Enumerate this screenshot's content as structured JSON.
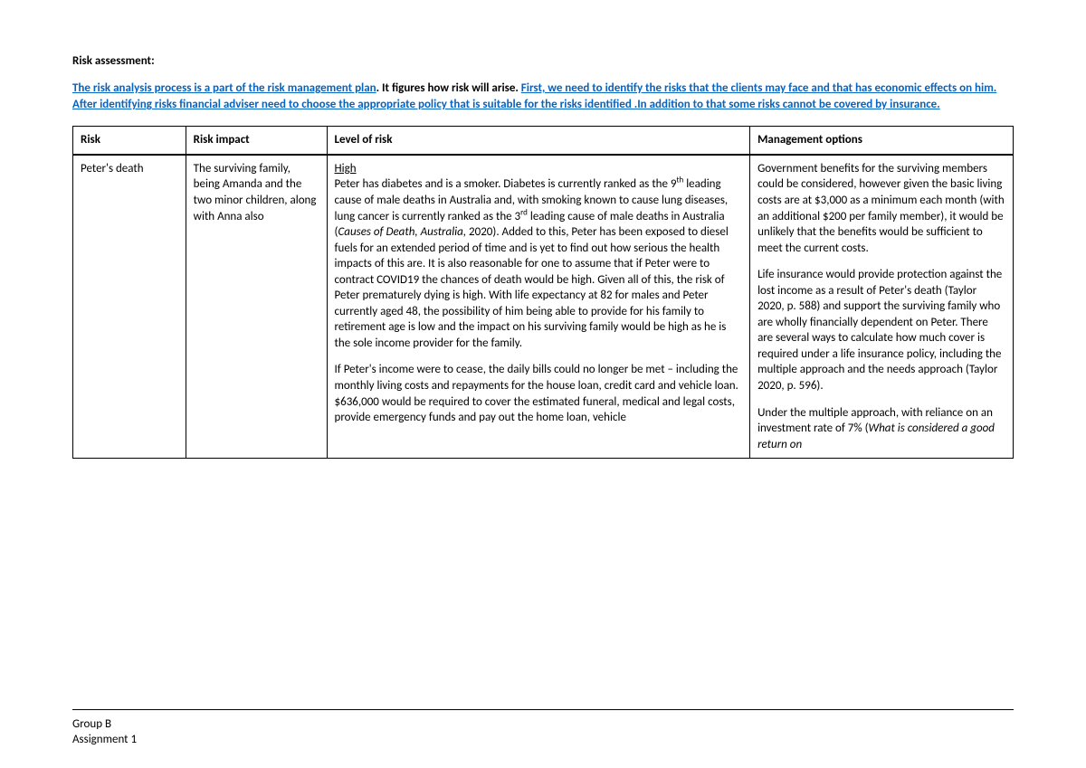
{
  "heading": "Risk assessment:",
  "intro": {
    "seg1_hl": "The risk analysis process is a part of the risk management plan",
    "seg2_bold": ". It figures how risk will arise. ",
    "seg3_hl": "First, we need to identify the risks that the clients may face and that has economic effects on him. After identifying risks financial adviser need to choose the appropriate policy that is suitable for the risks identified .In addition to that some risks cannot be covered by insurance."
  },
  "table": {
    "headers": {
      "risk": "Risk",
      "impact": "Risk impact",
      "level": "Level of risk",
      "mgmt": "Management options"
    },
    "row": {
      "risk": "Peter's death",
      "impact": "The surviving family, being Amanda and the two minor children, along with Anna also",
      "level": {
        "label": "High",
        "p1a": "Peter has diabetes and is a smoker.  Diabetes is currently ranked as the 9",
        "sup1": "th",
        "p1b": " leading cause of male deaths in Australia and, with smoking known to cause lung diseases, lung cancer is currently ranked as the 3",
        "sup2": "rd",
        "p1c": " leading cause of male deaths in Australia (",
        "cite1": "Causes of Death, Australia,",
        "p1d": " 2020).  Added to this, Peter has been exposed to diesel fuels for an extended period of time and is yet to find out how serious the health impacts of this are.  It is also reasonable for one to assume that if Peter were to contract COVID19 the chances of death would be high.  Given all of this, the risk of Peter prematurely dying is high.  With life expectancy at 82 for males and Peter currently aged 48, the possibility of him being able to provide for his family to retirement age is low and the impact on his surviving family would be high as he is the sole income provider for the family.",
        "p2": "If Peter's income were to cease, the daily bills could no longer be met – including the monthly living costs and repayments for the house loan, credit card and vehicle loan.  $636,000 would be required to cover the estimated funeral, medical and legal costs, provide emergency funds and pay out the home loan, vehicle"
      },
      "mgmt": {
        "p1": "Government benefits for the surviving members could be considered, however given the basic living costs are at $3,000 as a minimum each month (with an additional $200 per family member), it would be unlikely that the benefits would be sufficient to meet the current costs.",
        "p2": "Life insurance would provide protection against the lost income as a result of Peter's death (Taylor 2020, p. 588) and support the surviving family who are wholly financially dependent on Peter.  There are several ways to calculate how much cover is required under a life insurance policy, including the multiple approach and the needs approach (Taylor 2020, p. 596).",
        "p3a": "Under the multiple approach, with reliance on an investment rate of 7% (",
        "cite2": "What is considered a good return on"
      }
    }
  },
  "footer": {
    "line1": "Group B",
    "line2": "Assignment 1"
  }
}
